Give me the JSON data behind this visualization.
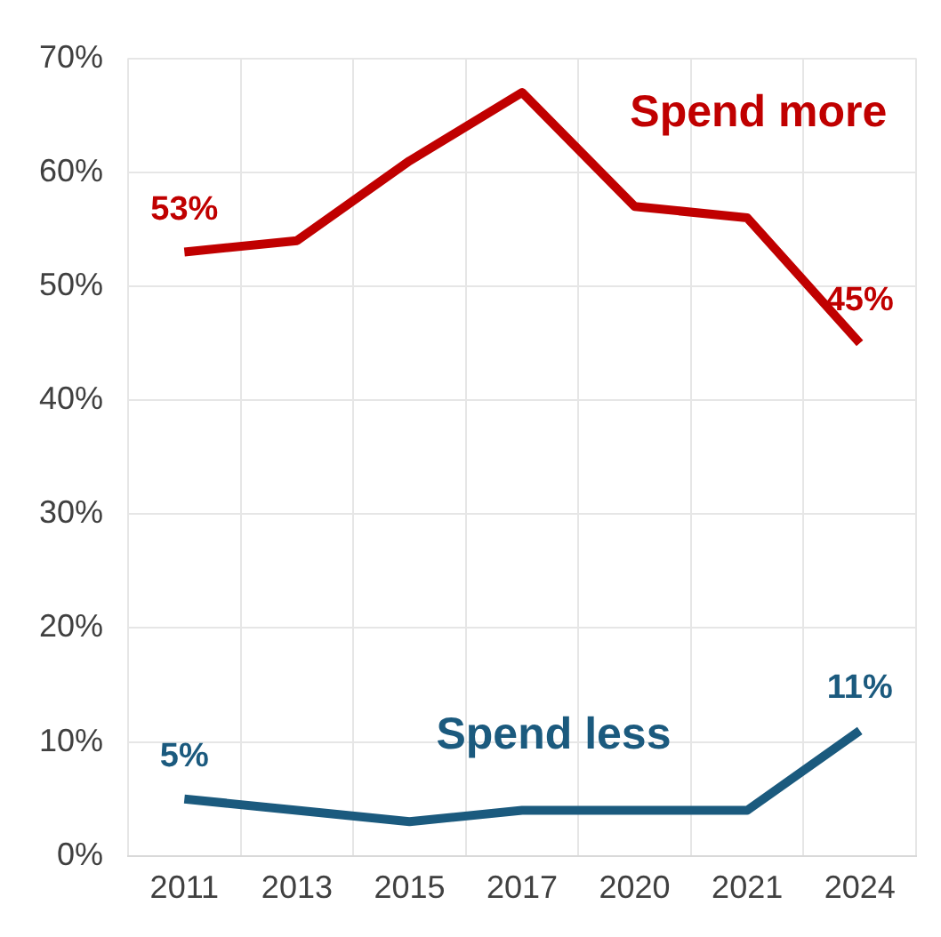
{
  "chart_data": {
    "type": "line",
    "categories": [
      "2011",
      "2013",
      "2015",
      "2017",
      "2020",
      "2021",
      "2024"
    ],
    "series": [
      {
        "name": "Spend more",
        "color": "#c00000",
        "values": [
          53,
          54,
          61,
          67,
          57,
          56,
          45
        ],
        "value_labels": [
          "53%",
          null,
          null,
          null,
          null,
          null,
          "45%"
        ]
      },
      {
        "name": "Spend less",
        "color": "#1b5a7e",
        "values": [
          5,
          4,
          3,
          4,
          4,
          4,
          11
        ],
        "value_labels": [
          "5%",
          null,
          null,
          null,
          null,
          null,
          "11%"
        ]
      }
    ],
    "ylim": [
      0,
      70
    ],
    "yticks": [
      {
        "value": 0,
        "label": "0%"
      },
      {
        "value": 10,
        "label": "10%"
      },
      {
        "value": 20,
        "label": "20%"
      },
      {
        "value": 30,
        "label": "30%"
      },
      {
        "value": 40,
        "label": "40%"
      },
      {
        "value": 50,
        "label": "50%"
      },
      {
        "value": 60,
        "label": "60%"
      },
      {
        "value": 70,
        "label": "70%"
      }
    ],
    "grid": true,
    "legend": false,
    "marker": "none",
    "line_style": "solid"
  }
}
